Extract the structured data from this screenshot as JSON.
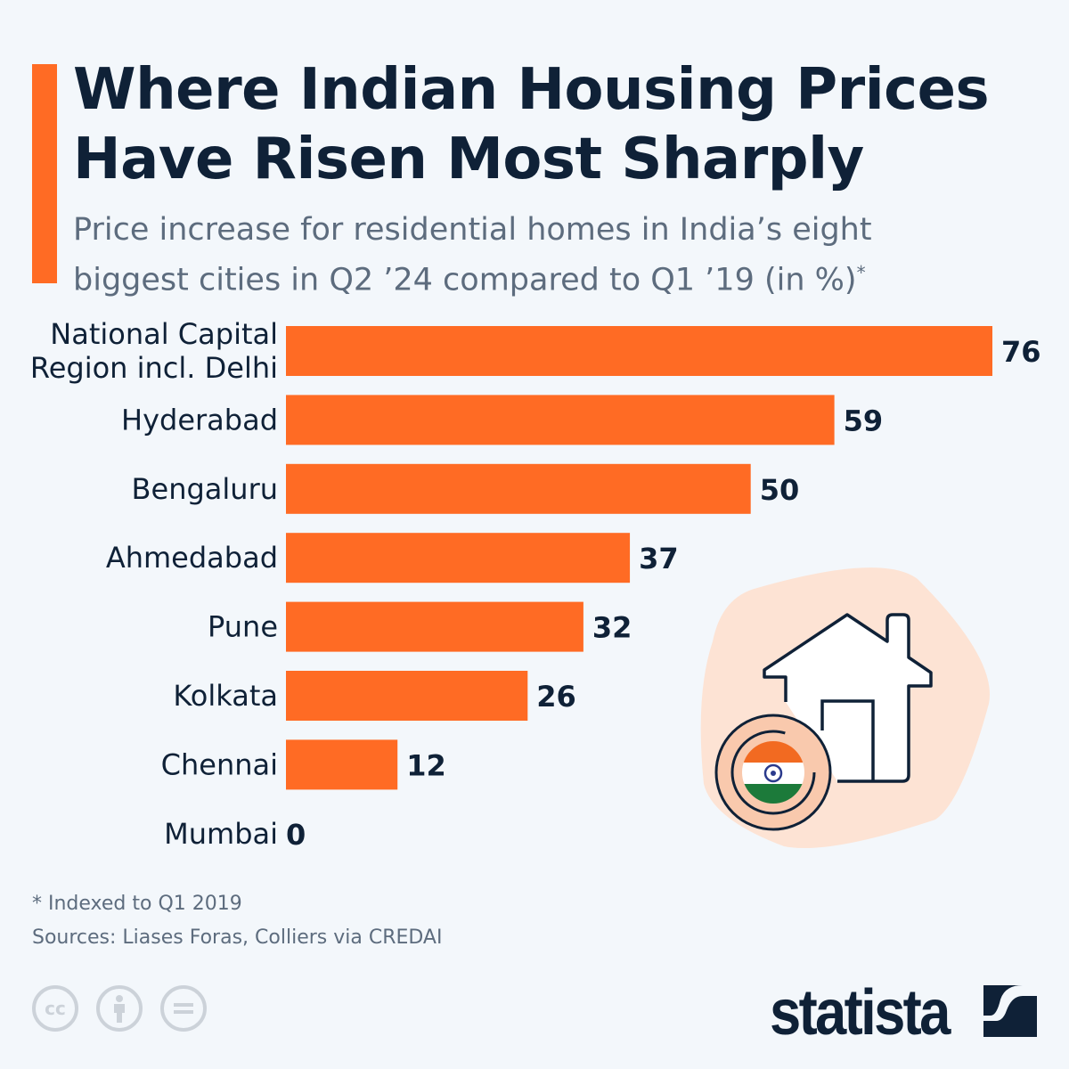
{
  "header": {
    "title_line1": "Where Indian Housing Prices",
    "title_line2": "Have Risen Most Sharply",
    "subtitle_line1": "Price increase for residential homes in India’s eight",
    "subtitle_line2": "biggest cities in Q2 ’24 compared to Q1 ’19 (in %)",
    "subtitle_mark": "*"
  },
  "chart_data": {
    "type": "bar",
    "orientation": "horizontal",
    "categories": [
      "National Capital Region incl. Delhi",
      "Hyderabad",
      "Bengaluru",
      "Ahmedabad",
      "Pune",
      "Kolkata",
      "Chennai",
      "Mumbai"
    ],
    "category_lines": [
      [
        "National Capital",
        "Region incl. Delhi"
      ],
      [
        "Hyderabad"
      ],
      [
        "Bengaluru"
      ],
      [
        "Ahmedabad"
      ],
      [
        "Pune"
      ],
      [
        "Kolkata"
      ],
      [
        "Chennai"
      ],
      [
        "Mumbai"
      ]
    ],
    "values": [
      76,
      59,
      50,
      37,
      32,
      26,
      12,
      0
    ],
    "xlim": [
      0,
      76
    ],
    "grid": false,
    "bar_color": "#ff6b24",
    "data_labels": true
  },
  "footer": {
    "note": "* Indexed to Q1 2019",
    "sources": "Sources: Liases Foras, Colliers via CREDAI",
    "brand": "statista",
    "license_icons": [
      "cc-icon",
      "by-icon",
      "nd-icon"
    ],
    "cc_text": "cc"
  },
  "colors": {
    "accent": "#ff6b24",
    "text": "#0f2137",
    "muted": "#5d6c7e",
    "background": "#f3f7fb"
  }
}
